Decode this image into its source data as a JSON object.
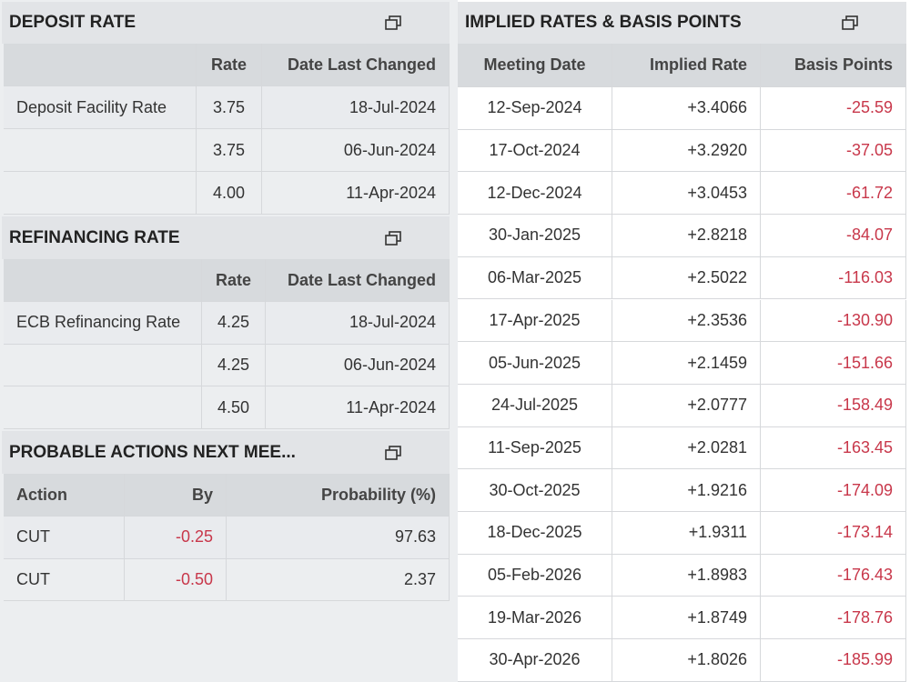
{
  "deposit_rate": {
    "title": "DEPOSIT RATE",
    "table": {
      "header": [
        null,
        "Rate",
        "Date Last Changed"
      ],
      "rows": [
        [
          "Deposit Facility Rate",
          "3.75",
          "18-Jul-2024"
        ],
        [
          null,
          "3.75",
          "06-Jun-2024"
        ],
        [
          null,
          "4.00",
          "11-Apr-2024"
        ]
      ]
    }
  },
  "refinancing_rate": {
    "title": "REFINANCING RATE",
    "table": {
      "header": [
        null,
        "Rate",
        "Date Last Changed"
      ],
      "rows": [
        [
          "ECB Refinancing Rate",
          "4.25",
          "18-Jul-2024"
        ],
        [
          null,
          "4.25",
          "06-Jun-2024"
        ],
        [
          null,
          "4.50",
          "11-Apr-2024"
        ]
      ]
    }
  },
  "probable_actions": {
    "title": "PROBABLE ACTIONS NEXT MEE...",
    "table": {
      "header": [
        "Action",
        "By",
        "Probability (%)"
      ],
      "rows": [
        [
          "CUT",
          "-0.25",
          "97.63"
        ],
        [
          "CUT",
          "-0.50",
          "2.37"
        ]
      ]
    }
  },
  "implied_rates": {
    "title": "IMPLIED RATES & BASIS POINTS",
    "table": {
      "header": [
        "Meeting Date",
        "Implied Rate",
        "Basis Points"
      ],
      "rows": [
        [
          "12-Sep-2024",
          "+3.4066",
          "-25.59"
        ],
        [
          "17-Oct-2024",
          "+3.2920",
          "-37.05"
        ],
        [
          "12-Dec-2024",
          "+3.0453",
          "-61.72"
        ],
        [
          "30-Jan-2025",
          "+2.8218",
          "-84.07"
        ],
        [
          "06-Mar-2025",
          "+2.5022",
          "-116.03"
        ],
        [
          "17-Apr-2025",
          "+2.3536",
          "-130.90"
        ],
        [
          "05-Jun-2025",
          "+2.1459",
          "-151.66"
        ],
        [
          "24-Jul-2025",
          "+2.0777",
          "-158.49"
        ],
        [
          "11-Sep-2025",
          "+2.0281",
          "-163.45"
        ],
        [
          "30-Oct-2025",
          "+1.9216",
          "-174.09"
        ],
        [
          "18-Dec-2025",
          "+1.9311",
          "-173.14"
        ],
        [
          "05-Feb-2026",
          "+1.8983",
          "-176.43"
        ],
        [
          "19-Mar-2026",
          "+1.8749",
          "-178.76"
        ],
        [
          "30-Apr-2026",
          "+1.8026",
          "-185.99"
        ]
      ]
    }
  }
}
